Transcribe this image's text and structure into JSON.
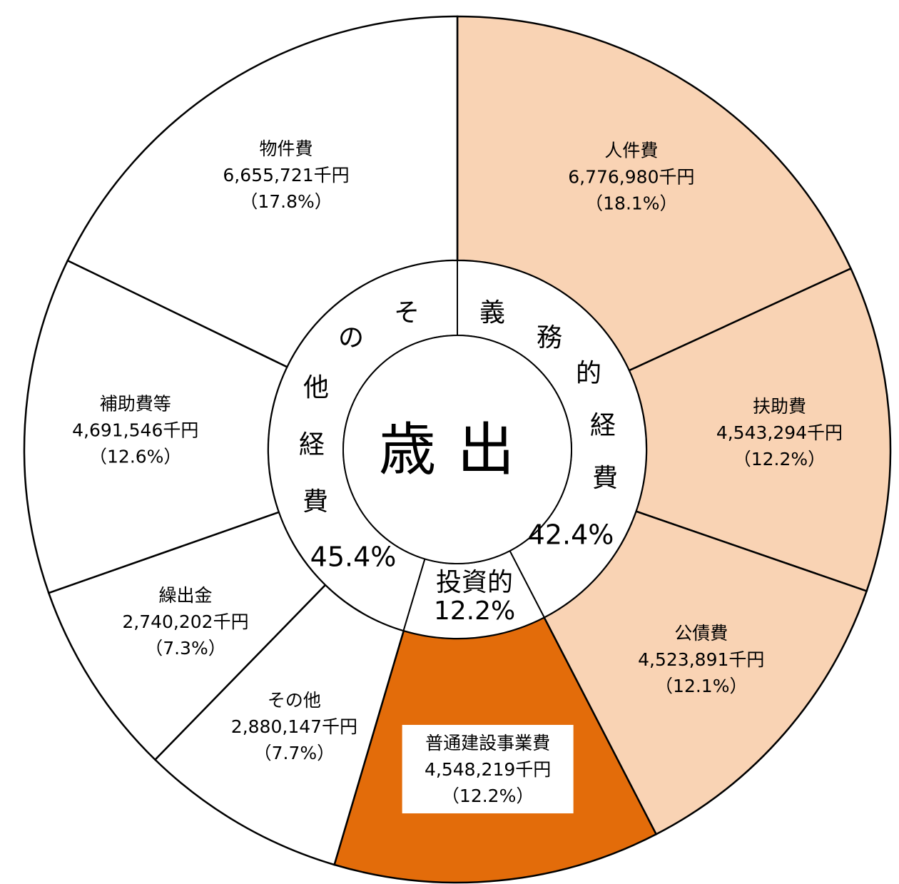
{
  "chart_data": {
    "type": "donut",
    "center_label": "歳出",
    "slices": [
      {
        "name": "人件費",
        "value": 6776980,
        "value_label": "6,776,980千円",
        "percent": 18.1,
        "percent_label": "（18.1%）",
        "color": "#f9d3b4"
      },
      {
        "name": "扶助費",
        "value": 4543294,
        "value_label": "4,543,294千円",
        "percent": 12.2,
        "percent_label": "（12.2%）",
        "color": "#f9d3b4"
      },
      {
        "name": "公債費",
        "value": 4523891,
        "value_label": "4,523,891千円",
        "percent": 12.1,
        "percent_label": "（12.1%）",
        "color": "#f9d3b4"
      },
      {
        "name": "普通建設事業費",
        "value": 4548219,
        "value_label": "4,548,219千円",
        "percent": 12.2,
        "percent_label": "（12.2%）",
        "color": "#e36c0a"
      },
      {
        "name": "その他",
        "value": 2880147,
        "value_label": "2,880,147千円",
        "percent": 7.7,
        "percent_label": "（7.7%）",
        "color": "#ffffff"
      },
      {
        "name": "繰出金",
        "value": 2740202,
        "value_label": "2,740,202千円",
        "percent": 7.3,
        "percent_label": "（7.3%）",
        "color": "#ffffff"
      },
      {
        "name": "補助費等",
        "value": 4691546,
        "value_label": "4,691,546千円",
        "percent": 12.6,
        "percent_label": "（12.6%）",
        "color": "#ffffff"
      },
      {
        "name": "物件費",
        "value": 6655721,
        "value_label": "6,655,721千円",
        "percent": 17.8,
        "percent_label": "（17.8%）",
        "color": "#ffffff"
      }
    ],
    "groups": [
      {
        "name": "義務的経費",
        "percent": 42.4,
        "percent_label": "42.4%"
      },
      {
        "name": "投資的",
        "percent": 12.2,
        "percent_label": "12.2%"
      },
      {
        "name": "その他経費",
        "percent": 45.4,
        "percent_label": "45.4%"
      }
    ]
  }
}
